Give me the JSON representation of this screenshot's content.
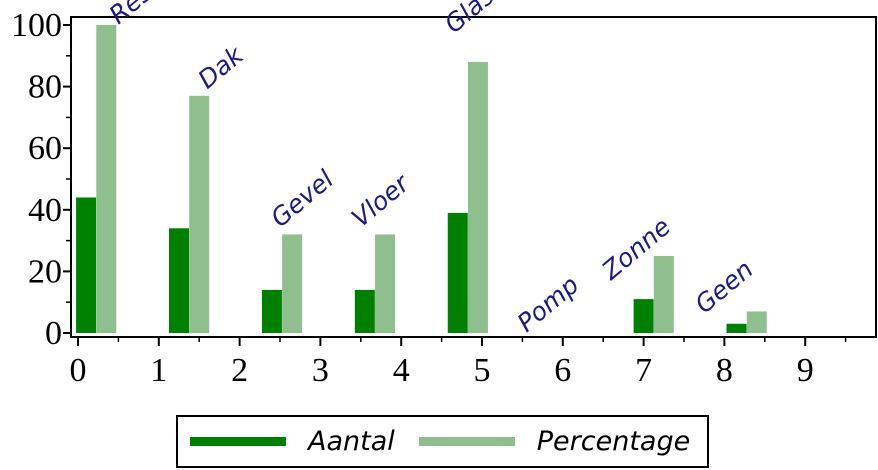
{
  "chart_data": {
    "type": "bar",
    "x_ticks": [
      "0",
      "1",
      "2",
      "3",
      "4",
      "5",
      "6",
      "7",
      "8",
      "9"
    ],
    "y_ticks": [
      "0",
      "20",
      "40",
      "60",
      "80",
      "100"
    ],
    "xlim": [
      0,
      9.8
    ],
    "ylim": [
      0,
      101
    ],
    "grid": false,
    "legend_position": "bottom-center",
    "colors": {
      "aantal": "#008000",
      "percentage": "#8fbf8f",
      "annotation": "#1a1a8c"
    },
    "series": [
      {
        "name": "Aantal",
        "x": [
          0.1,
          1.25,
          2.4,
          3.55,
          4.7,
          5.85,
          7.0,
          8.15
        ],
        "values": [
          44,
          34,
          14,
          14,
          39,
          0,
          11,
          3
        ]
      },
      {
        "name": "Percentage",
        "x": [
          0.35,
          1.5,
          2.65,
          3.8,
          4.95,
          6.1,
          7.25,
          8.4
        ],
        "values": [
          100,
          77,
          32,
          32,
          88,
          0,
          25,
          7
        ]
      }
    ],
    "annotations": [
      {
        "text": "Resp",
        "x": 0.5,
        "y": 100
      },
      {
        "text": "Dak",
        "x": 1.6,
        "y": 79
      },
      {
        "text": "Gevel",
        "x": 2.5,
        "y": 34
      },
      {
        "text": "Vloer",
        "x": 3.5,
        "y": 34
      },
      {
        "text": "Glas",
        "x": 4.65,
        "y": 97
      },
      {
        "text": "Pomp",
        "x": 5.55,
        "y": 0
      },
      {
        "text": "Zonne",
        "x": 6.6,
        "y": 17
      },
      {
        "text": "Geen",
        "x": 7.75,
        "y": 6
      }
    ]
  },
  "legend": {
    "aantal_label": "Aantal",
    "percentage_label": "Percentage"
  }
}
